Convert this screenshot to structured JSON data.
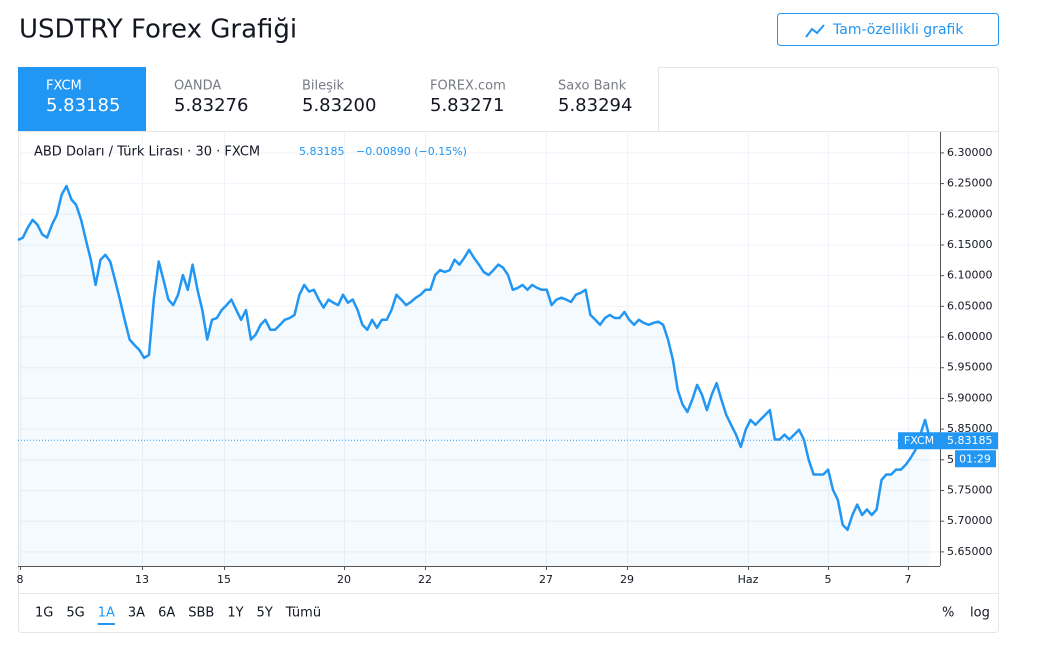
{
  "header": {
    "title": "USDTRY Forex Grafiği",
    "button": "Tam-özellikli grafik"
  },
  "tabs": [
    {
      "name": "FXCM",
      "price": "5.83185"
    },
    {
      "name": "OANDA",
      "price": "5.83276"
    },
    {
      "name": "Bileşik",
      "price": "5.83200"
    },
    {
      "name": "FOREX.com",
      "price": "5.83271"
    },
    {
      "name": "Saxo Bank",
      "price": "5.83294"
    }
  ],
  "legend": {
    "symbol": "ABD Doları / Türk Lirası · 30 · FXCM",
    "price": "5.83185",
    "change": "−0.00890 (−0.15%)"
  },
  "chart_data": {
    "type": "line",
    "series": [
      {
        "name": "FXCM",
        "color": "#2196f3",
        "values": [
          6.158,
          6.162,
          6.178,
          6.191,
          6.183,
          6.167,
          6.162,
          6.183,
          6.199,
          6.232,
          6.246,
          6.224,
          6.215,
          6.191,
          6.158,
          6.126,
          6.085,
          6.126,
          6.134,
          6.123,
          6.093,
          6.061,
          6.028,
          5.996,
          5.987,
          5.979,
          5.966,
          5.971,
          6.061,
          6.123,
          6.093,
          6.061,
          6.052,
          6.069,
          6.101,
          6.077,
          6.118,
          6.077,
          6.044,
          5.996,
          6.028,
          6.031,
          6.044,
          6.052,
          6.061,
          6.044,
          6.028,
          6.044,
          5.996,
          6.004,
          6.02,
          6.028,
          6.012,
          6.012,
          6.02,
          6.028,
          6.031,
          6.036,
          6.069,
          6.085,
          6.074,
          6.077,
          6.061,
          6.048,
          6.061,
          6.056,
          6.052,
          6.069,
          6.056,
          6.061,
          6.044,
          6.02,
          6.012,
          6.028,
          6.015,
          6.028,
          6.028,
          6.044,
          6.069,
          6.061,
          6.052,
          6.057,
          6.064,
          6.069,
          6.077,
          6.077,
          6.101,
          6.109,
          6.106,
          6.109,
          6.126,
          6.118,
          6.129,
          6.142,
          6.129,
          6.118,
          6.106,
          6.101,
          6.109,
          6.118,
          6.113,
          6.101,
          6.077,
          6.08,
          6.085,
          6.077,
          6.085,
          6.08,
          6.077,
          6.077,
          6.052,
          6.061,
          6.064,
          6.061,
          6.057,
          6.069,
          6.072,
          6.077,
          6.036,
          6.028,
          6.02,
          6.031,
          6.036,
          6.031,
          6.031,
          6.041,
          6.028,
          6.02,
          6.028,
          6.023,
          6.02,
          6.023,
          6.025,
          6.02,
          5.996,
          5.963,
          5.914,
          5.89,
          5.878,
          5.898,
          5.922,
          5.906,
          5.881,
          5.906,
          5.925,
          5.898,
          5.873,
          5.857,
          5.841,
          5.821,
          5.849,
          5.865,
          5.857,
          5.865,
          5.873,
          5.881,
          5.833,
          5.833,
          5.841,
          5.833,
          5.841,
          5.849,
          5.833,
          5.8,
          5.776,
          5.776,
          5.776,
          5.784,
          5.751,
          5.735,
          5.694,
          5.686,
          5.71,
          5.727,
          5.71,
          5.719,
          5.71,
          5.719,
          5.767,
          5.776,
          5.776,
          5.784,
          5.784,
          5.792,
          5.803,
          5.816,
          5.841,
          5.865,
          5.833
        ]
      }
    ],
    "x_labels": [
      "8",
      "13",
      "15",
      "20",
      "22",
      "27",
      "29",
      "Haz",
      "5",
      "7"
    ],
    "ylim": [
      5.627,
      6.334
    ],
    "yticks": [
      {
        "value": 6.3,
        "label": "6.30000"
      },
      {
        "value": 6.25,
        "label": "6.25000"
      },
      {
        "value": 6.2,
        "label": "6.20000"
      },
      {
        "value": 6.15,
        "label": "6.15000"
      },
      {
        "value": 6.1,
        "label": "6.10000"
      },
      {
        "value": 6.05,
        "label": "6.05000"
      },
      {
        "value": 6.0,
        "label": "6.00000"
      },
      {
        "value": 5.95,
        "label": "5.95000"
      },
      {
        "value": 5.9,
        "label": "5.90000"
      },
      {
        "value": 5.85,
        "label": "5.85000"
      },
      {
        "value": 5.8,
        "label": "5.80000"
      },
      {
        "value": 5.75,
        "label": "5.75000"
      },
      {
        "value": 5.7,
        "label": "5.70000"
      },
      {
        "value": 5.65,
        "label": "5.65000"
      }
    ],
    "grid": true,
    "last_value": 5.83185,
    "last_label": "FXCM",
    "countdown": "01:29"
  },
  "ranges": [
    "1G",
    "5G",
    "1A",
    "3A",
    "6A",
    "SBB",
    "1Y",
    "5Y",
    "Tümü"
  ],
  "scale_options": [
    "%",
    "log"
  ]
}
